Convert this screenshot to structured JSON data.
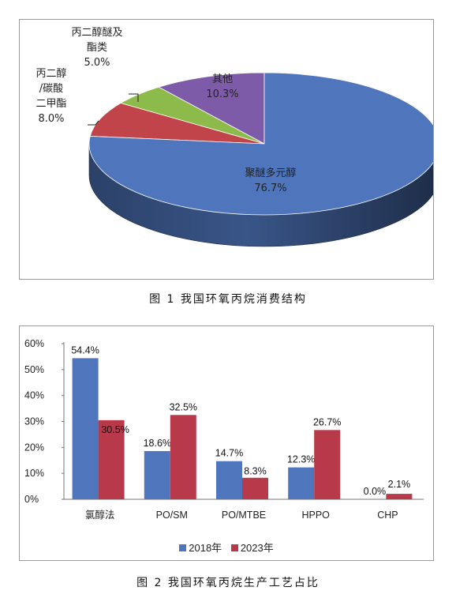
{
  "chart_data": [
    {
      "type": "pie",
      "title": "",
      "slices": [
        {
          "name": "聚醚多元醇",
          "value": 76.7,
          "label": "76.7%",
          "color": "#4F76BD"
        },
        {
          "name": "丙二醇/碳酸二甲酯",
          "value": 8.0,
          "label": "8.0%",
          "color": "#C0444A"
        },
        {
          "name": "丙二醇醚及酯类",
          "value": 5.0,
          "label": "5.0%",
          "color": "#8DBB4B"
        },
        {
          "name": "其他",
          "value": 10.3,
          "label": "10.3%",
          "color": "#7E5BA8"
        }
      ],
      "label_lines": {
        "polyether": [
          "聚醚多元醇",
          "76.7%"
        ],
        "propylene_glycol": [
          "丙二醇",
          "/碳酸",
          "二甲酯",
          "8.0%"
        ],
        "glycol_ether": [
          "丙二醇醚及",
          "酯类",
          "5.0%"
        ],
        "other": [
          "其他",
          "10.3%"
        ]
      }
    },
    {
      "type": "bar",
      "title": "",
      "categories": [
        "氯醇法",
        "PO/SM",
        "PO/MTBE",
        "HPPO",
        "CHP"
      ],
      "series": [
        {
          "name": "2018年",
          "values": [
            54.4,
            18.6,
            14.7,
            12.3,
            0.0
          ],
          "labels": [
            "54.4%",
            "18.6%",
            "14.7%",
            "12.3%",
            "0.0%"
          ],
          "color": "#4F76BD"
        },
        {
          "name": "2023年",
          "values": [
            30.5,
            32.5,
            8.3,
            26.7,
            2.1
          ],
          "labels": [
            "30.5%",
            "32.5%",
            "8.3%",
            "26.7%",
            "2.1%"
          ],
          "color": "#B8394A"
        }
      ],
      "ylim": [
        0,
        60
      ],
      "yticks": [
        "0%",
        "10%",
        "20%",
        "30%",
        "40%",
        "50%",
        "60%"
      ],
      "legend": "bottom"
    }
  ],
  "captions": {
    "fig1": "图 1  我国环氧丙烷消费结构",
    "fig2": "图 2  我国环氧丙烷生产工艺占比"
  }
}
